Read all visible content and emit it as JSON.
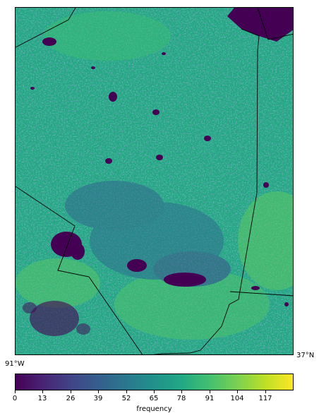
{
  "map": {
    "colormap": "viridis",
    "value_range": [
      0,
      130
    ],
    "lon_label": "91°W",
    "lat_label": "37°N"
  },
  "colorbar": {
    "label": "frequency",
    "ticks": [
      "0",
      "13",
      "26",
      "39",
      "52",
      "65",
      "78",
      "91",
      "104",
      "117"
    ]
  }
}
